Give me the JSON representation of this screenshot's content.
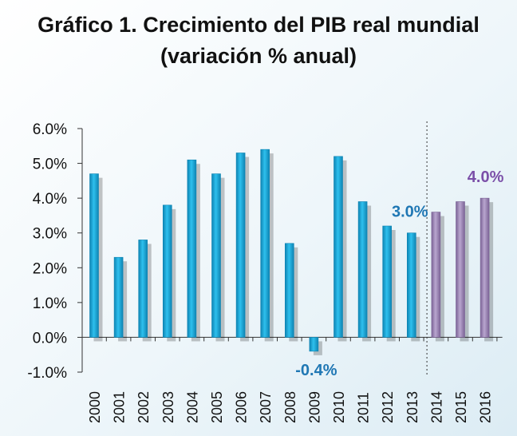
{
  "title_line1": "Gráfico 1. Crecimiento del PIB real mundial",
  "title_line2": "(variación % anual)",
  "colors": {
    "actual": "#19ADE0",
    "actual_dark": "#0E84B3",
    "projection": "#9E88B8",
    "projection_dark": "#7B6396",
    "annotation_blue": "#1F77B4",
    "annotation_purple": "#7B4FA8",
    "background": "#E6F2F8"
  },
  "chart_data": {
    "type": "bar",
    "categories": [
      "2000",
      "2001",
      "2002",
      "2003",
      "2004",
      "2005",
      "2006",
      "2007",
      "2008",
      "2009",
      "2010",
      "2011",
      "2012",
      "2013",
      "2014",
      "2015",
      "2016"
    ],
    "values": [
      4.7,
      2.3,
      2.8,
      3.8,
      5.1,
      4.7,
      5.3,
      5.4,
      2.7,
      -0.4,
      5.2,
      3.9,
      3.2,
      3.0,
      3.6,
      3.9,
      4.0
    ],
    "projected_from": "2014",
    "ylim": [
      -1.0,
      6.0
    ],
    "yticks": [
      "-1.0%",
      "0.0%",
      "1.0%",
      "2.0%",
      "3.0%",
      "4.0%",
      "5.0%",
      "6.0%"
    ],
    "ytick_values": [
      -1,
      0,
      1,
      2,
      3,
      4,
      5,
      6
    ],
    "annotations": [
      {
        "category": "2009",
        "text": "-0.4%",
        "color": "blue"
      },
      {
        "category": "2013",
        "text": "3.0%",
        "color": "blue"
      },
      {
        "category": "2016",
        "text": "4.0%",
        "color": "purple"
      }
    ],
    "divider_after": "2013"
  }
}
